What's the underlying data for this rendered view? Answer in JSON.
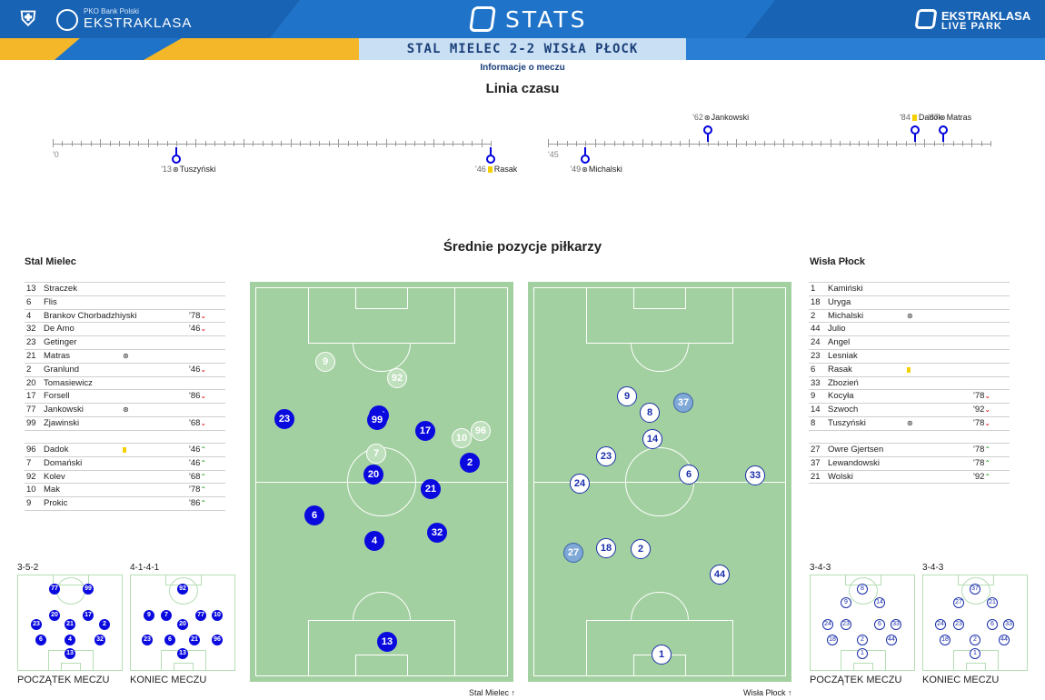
{
  "header": {
    "pko_small": "PKO Bank Polski",
    "ekstraklasa": "EKSTRAKLASA",
    "stats": "STATS",
    "live_park_1": "EKSTRAKLASA",
    "live_park_2": "LIVE PARK",
    "accent": "#1f73c8",
    "yellow": "#f4b72a"
  },
  "match": {
    "title": "STAL MIELEC 2-2 WISŁA PŁOCK",
    "info_link": "Informacje o meczu"
  },
  "timeline": {
    "title": "Linia czasu",
    "first_half_start": "'0",
    "second_half_start": "'45",
    "events": [
      {
        "min": "'13",
        "type": "goal",
        "player": "Tuszyński",
        "team": "away",
        "half": 1,
        "minute": 13
      },
      {
        "min": "'46",
        "type": "card",
        "player": "Rasak",
        "team": "away",
        "half": 1,
        "minute": 46
      },
      {
        "min": "'49",
        "type": "goal",
        "player": "Michalski",
        "team": "away",
        "half": 2,
        "minute": 49
      },
      {
        "min": "'62",
        "type": "goal",
        "player": "Jankowski",
        "team": "home",
        "half": 2,
        "minute": 62
      },
      {
        "min": "'84",
        "type": "card",
        "player": "Dadok",
        "team": "home",
        "half": 2,
        "minute": 84
      },
      {
        "min": "'87",
        "type": "goal",
        "player": "Matras",
        "team": "home",
        "half": 2,
        "minute": 87
      }
    ]
  },
  "positions": {
    "title": "Średnie pozycje piłkarzy",
    "home_caption": "Stal Mielec",
    "away_caption": "Wisła Płock"
  },
  "home": {
    "name": "Stal Mielec",
    "starters": [
      {
        "num": "13",
        "name": "Straczek",
        "icon": "",
        "time": "",
        "dir": ""
      },
      {
        "num": "6",
        "name": "Flis",
        "icon": "",
        "time": "",
        "dir": ""
      },
      {
        "num": "4",
        "name": "Brankov Chorbadzhiyski",
        "icon": "",
        "time": "'78",
        "dir": "down"
      },
      {
        "num": "32",
        "name": "De Amo",
        "icon": "",
        "time": "'46",
        "dir": "down"
      },
      {
        "num": "23",
        "name": "Getinger",
        "icon": "",
        "time": "",
        "dir": ""
      },
      {
        "num": "21",
        "name": "Matras",
        "icon": "goal",
        "time": "",
        "dir": ""
      },
      {
        "num": "2",
        "name": "Granlund",
        "icon": "",
        "time": "'46",
        "dir": "down"
      },
      {
        "num": "20",
        "name": "Tomasiewicz",
        "icon": "",
        "time": "",
        "dir": ""
      },
      {
        "num": "17",
        "name": "Forsell",
        "icon": "",
        "time": "'86",
        "dir": "down"
      },
      {
        "num": "77",
        "name": "Jankowski",
        "icon": "goal",
        "time": "",
        "dir": ""
      },
      {
        "num": "99",
        "name": "Zjawinski",
        "icon": "",
        "time": "'68",
        "dir": "down"
      }
    ],
    "subs": [
      {
        "num": "96",
        "name": "Dadok",
        "icon": "card",
        "time": "'46",
        "dir": "up"
      },
      {
        "num": "7",
        "name": "Domański",
        "icon": "",
        "time": "'46",
        "dir": "up"
      },
      {
        "num": "92",
        "name": "Kolev",
        "icon": "",
        "time": "'68",
        "dir": "up"
      },
      {
        "num": "10",
        "name": "Mak",
        "icon": "",
        "time": "'78",
        "dir": "up"
      },
      {
        "num": "9",
        "name": "Prokic",
        "icon": "",
        "time": "'86",
        "dir": "up"
      }
    ],
    "formation_start": "3-5-2",
    "formation_end": "4-1-4-1"
  },
  "away": {
    "name": "Wisła Płock",
    "starters": [
      {
        "num": "1",
        "name": "Kamiński",
        "icon": "",
        "time": "",
        "dir": ""
      },
      {
        "num": "18",
        "name": "Uryga",
        "icon": "",
        "time": "",
        "dir": ""
      },
      {
        "num": "2",
        "name": "Michalski",
        "icon": "goal",
        "time": "",
        "dir": ""
      },
      {
        "num": "44",
        "name": "Julio",
        "icon": "",
        "time": "",
        "dir": ""
      },
      {
        "num": "24",
        "name": "Angel",
        "icon": "",
        "time": "",
        "dir": ""
      },
      {
        "num": "23",
        "name": "Lesniak",
        "icon": "",
        "time": "",
        "dir": ""
      },
      {
        "num": "6",
        "name": "Rasak",
        "icon": "card",
        "time": "",
        "dir": ""
      },
      {
        "num": "33",
        "name": "Zbozień",
        "icon": "",
        "time": "",
        "dir": ""
      },
      {
        "num": "9",
        "name": "Kocyła",
        "icon": "",
        "time": "'78",
        "dir": "down"
      },
      {
        "num": "14",
        "name": "Szwoch",
        "icon": "",
        "time": "'92",
        "dir": "down"
      },
      {
        "num": "8",
        "name": "Tuszyński",
        "icon": "goal",
        "time": "'78",
        "dir": "down"
      }
    ],
    "subs": [
      {
        "num": "27",
        "name": "Owre Gjertsen",
        "icon": "",
        "time": "'78",
        "dir": "up"
      },
      {
        "num": "37",
        "name": "Lewandowski",
        "icon": "",
        "time": "'78",
        "dir": "up"
      },
      {
        "num": "21",
        "name": "Wolski",
        "icon": "",
        "time": "'92",
        "dir": "up"
      }
    ],
    "formation_start": "3-4-3",
    "formation_end": "3-4-3"
  },
  "captions": {
    "start": "POCZĄTEK MECZU",
    "end": "KONIEC MECZU"
  },
  "home_pitch_dots": [
    {
      "n": "9",
      "s": "bf"
    },
    {
      "n": "92",
      "s": "bf"
    },
    {
      "n": "23",
      "s": "b"
    },
    {
      "n": "77",
      "s": "b"
    },
    {
      "n": "99",
      "s": "b"
    },
    {
      "n": "17",
      "s": "b"
    },
    {
      "n": "96",
      "s": "bf"
    },
    {
      "n": "10",
      "s": "bf"
    },
    {
      "n": "7",
      "s": "bf"
    },
    {
      "n": "2",
      "s": "b"
    },
    {
      "n": "20",
      "s": "b"
    },
    {
      "n": "21",
      "s": "b"
    },
    {
      "n": "6",
      "s": "b"
    },
    {
      "n": "32",
      "s": "b"
    },
    {
      "n": "4",
      "s": "b"
    },
    {
      "n": "13",
      "s": "b"
    }
  ],
  "away_pitch_dots": [
    {
      "n": "9",
      "s": "w"
    },
    {
      "n": "37",
      "s": "wf"
    },
    {
      "n": "8",
      "s": "w"
    },
    {
      "n": "14",
      "s": "w"
    },
    {
      "n": "23",
      "s": "w"
    },
    {
      "n": "24",
      "s": "w"
    },
    {
      "n": "6",
      "s": "w"
    },
    {
      "n": "33",
      "s": "w"
    },
    {
      "n": "27",
      "s": "wf"
    },
    {
      "n": "18",
      "s": "w"
    },
    {
      "n": "2",
      "s": "w"
    },
    {
      "n": "44",
      "s": "w"
    },
    {
      "n": "1",
      "s": "w"
    }
  ],
  "mini_home_start": [
    "77",
    "99",
    "20",
    "17",
    "23",
    "21",
    "2",
    "6",
    "4",
    "32",
    "13"
  ],
  "mini_home_end": [
    "92",
    "9",
    "7",
    "77",
    "10",
    "20",
    "23",
    "6",
    "21",
    "96",
    "13"
  ],
  "mini_away_start": [
    "8",
    "9",
    "14",
    "24",
    "23",
    "6",
    "33",
    "18",
    "2",
    "44",
    "1"
  ],
  "mini_away_end": [
    "37",
    "27",
    "21",
    "24",
    "23",
    "6",
    "33",
    "18",
    "2",
    "44",
    "1"
  ]
}
